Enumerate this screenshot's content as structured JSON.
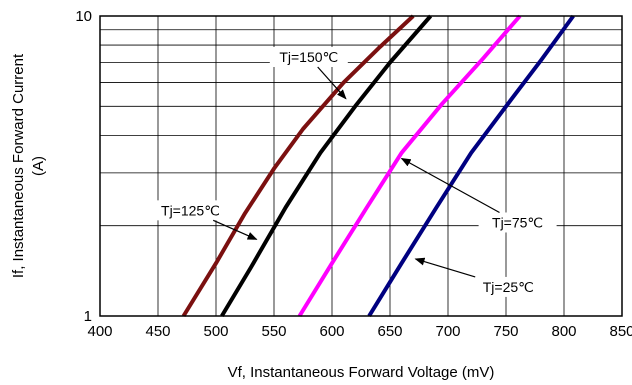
{
  "chart_data": {
    "type": "line",
    "title": "",
    "xlabel": "Vf, Instantaneous Forward  Voltage (mV)",
    "ylabel_line1": "If, Instantaneous Forward Current",
    "ylabel_line2": "(A)",
    "xlim": [
      400,
      850
    ],
    "ylim": [
      1,
      10
    ],
    "y_scale": "log",
    "grid": true,
    "legend": "none",
    "x_ticks": [
      400,
      450,
      500,
      550,
      600,
      650,
      700,
      750,
      800,
      850
    ],
    "x_tick_labels": [
      "400",
      "450",
      "500",
      "550",
      "600",
      "650",
      "700",
      "750",
      "800",
      "850"
    ],
    "y_ticks": [
      1,
      10
    ],
    "y_tick_labels": [
      "1",
      "10"
    ],
    "y_minor_grid": [
      2,
      3,
      4,
      5,
      6,
      7,
      8,
      9
    ],
    "series": [
      {
        "label": "Tj=150℃",
        "color": "#7b1010",
        "points": [
          [
            472,
            1
          ],
          [
            500,
            1.5
          ],
          [
            525,
            2.2
          ],
          [
            550,
            3.1
          ],
          [
            575,
            4.2
          ],
          [
            610,
            6.0
          ],
          [
            640,
            7.8
          ],
          [
            670,
            10
          ]
        ]
      },
      {
        "label": "Tj=125℃",
        "color": "#000000",
        "points": [
          [
            505,
            1
          ],
          [
            530,
            1.45
          ],
          [
            560,
            2.3
          ],
          [
            590,
            3.5
          ],
          [
            620,
            5.0
          ],
          [
            650,
            7.0
          ],
          [
            685,
            10
          ]
        ]
      },
      {
        "label": "Tj=75℃",
        "color": "#ff00ff",
        "points": [
          [
            572,
            1
          ],
          [
            600,
            1.5
          ],
          [
            630,
            2.3
          ],
          [
            660,
            3.5
          ],
          [
            695,
            5.1
          ],
          [
            730,
            7.2
          ],
          [
            762,
            10
          ]
        ]
      },
      {
        "label": "Tj=25℃",
        "color": "#000080",
        "points": [
          [
            632,
            1
          ],
          [
            660,
            1.5
          ],
          [
            690,
            2.3
          ],
          [
            720,
            3.5
          ],
          [
            755,
            5.3
          ],
          [
            780,
            7.1
          ],
          [
            808,
            10
          ]
        ]
      }
    ],
    "annotations": [
      {
        "text": "Tj=150℃",
        "label_at": [
          580,
          7.3
        ],
        "arrow_to": [
          612,
          5.3
        ]
      },
      {
        "text": "Tj=125℃",
        "label_at": [
          478,
          2.25
        ],
        "arrow_to": [
          535,
          1.8
        ]
      },
      {
        "text": "Tj=75℃",
        "label_at": [
          760,
          2.05
        ],
        "arrow_to": [
          660,
          3.35
        ]
      },
      {
        "text": "Tj=25℃",
        "label_at": [
          752,
          1.25
        ],
        "arrow_to": [
          672,
          1.55
        ]
      }
    ]
  }
}
